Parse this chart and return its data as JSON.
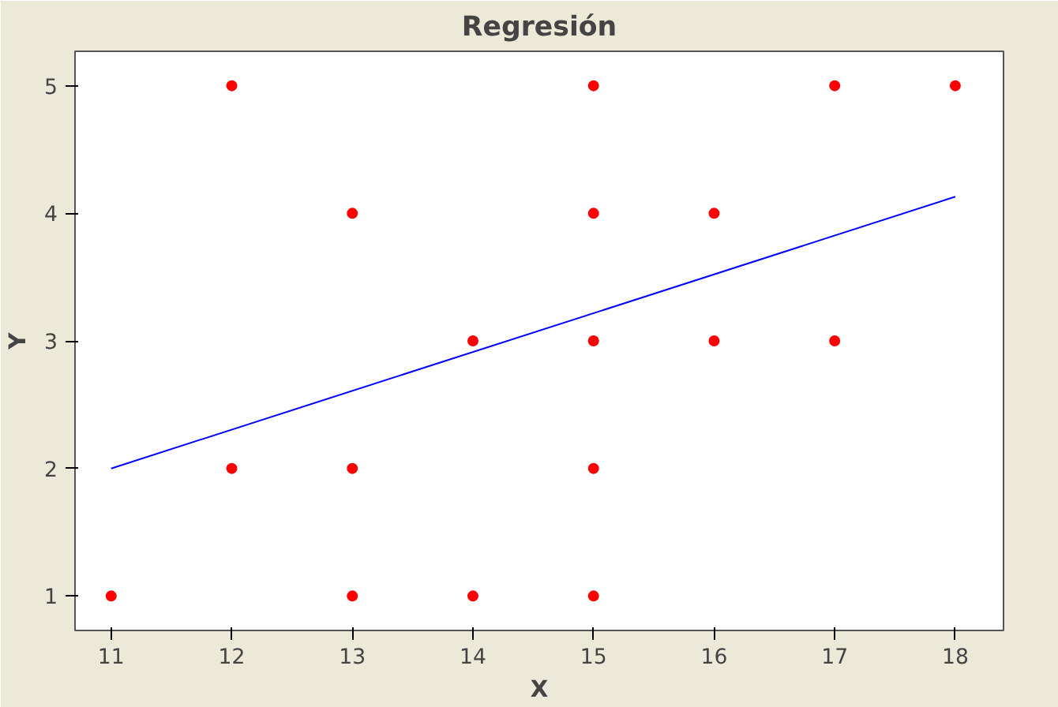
{
  "chart_data": {
    "type": "scatter",
    "title": "Regresión",
    "xlabel": "X",
    "ylabel": "Y",
    "xlim": [
      10.7,
      18.4
    ],
    "ylim": [
      0.73,
      5.27
    ],
    "xticks": [
      11,
      12,
      13,
      14,
      15,
      16,
      17,
      18
    ],
    "yticks": [
      1,
      2,
      3,
      4,
      5
    ],
    "grid": false,
    "series": [
      {
        "marker": "circle",
        "color": "#ff0000",
        "x": [
          11,
          12,
          12,
          13,
          13,
          13,
          14,
          14,
          15,
          15,
          15,
          15,
          15,
          16,
          16,
          17,
          17,
          18
        ],
        "values": [
          1,
          5,
          2,
          4,
          2,
          1,
          3,
          1,
          5,
          4,
          3,
          2,
          1,
          4,
          3,
          5,
          3,
          5
        ]
      },
      {
        "type": "line",
        "marker": "none",
        "color": "#0000ff",
        "x": [
          11,
          18
        ],
        "values": [
          2.0,
          4.13
        ]
      }
    ]
  }
}
